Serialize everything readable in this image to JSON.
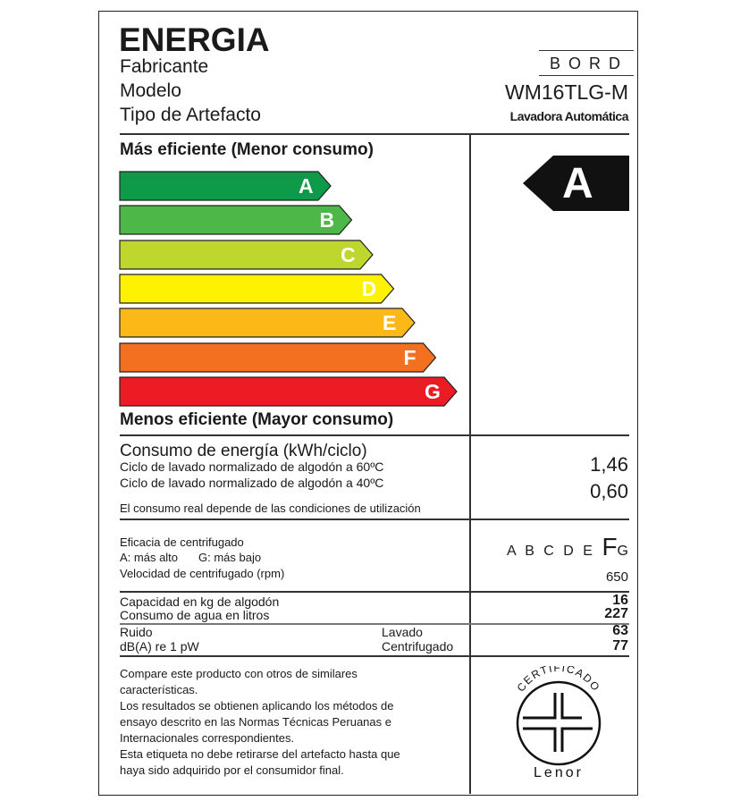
{
  "header": {
    "title": "ENERGIA",
    "labels": [
      "Fabricante",
      "Modelo",
      "Tipo de Artefacto"
    ],
    "brand": "BORD",
    "model": "WM16TLG-M",
    "appliance_type": "Lavadora Automática"
  },
  "scale": {
    "top_label": "Más eficiente (Menor consumo)",
    "bottom_label": "Menos eficiente (Mayor consumo)",
    "classes": [
      {
        "letter": "A",
        "color": "#0f9a4a"
      },
      {
        "letter": "B",
        "color": "#4db748"
      },
      {
        "letter": "C",
        "color": "#bfd62f"
      },
      {
        "letter": "D",
        "color": "#fff200"
      },
      {
        "letter": "E",
        "color": "#fbb817"
      },
      {
        "letter": "F",
        "color": "#f37021"
      },
      {
        "letter": "G",
        "color": "#ec1c24"
      }
    ],
    "rating": "A"
  },
  "consumption": {
    "title": "Consumo de energía (kWh/ciclo)",
    "line1": "Ciclo de lavado normalizado de algodón a 60ºC",
    "value1": "1,46",
    "line2": "Ciclo de lavado normalizado de algodón a 40ºC",
    "value2": "0,60",
    "note": "El consumo real depende de las condiciones de utilización"
  },
  "spin": {
    "title": "Eficacia de centrifugado",
    "legend_a": "A: más alto",
    "legend_g": "G: más bajo",
    "scale_before": "A B C D E",
    "scale_selected": "F",
    "scale_after": "G",
    "speed_label": "Velocidad de centrifugado (rpm)",
    "speed_value": "650"
  },
  "specs": {
    "capacity_label": "Capacidad en kg de algodón",
    "capacity_value": "16",
    "water_label": "Consumo de agua en litros",
    "water_value": "227",
    "noise_label": "Ruido",
    "noise_unit": "dB(A) re 1 pW",
    "wash_label": "Lavado",
    "wash_value": "63",
    "spin_label": "Centrifugado",
    "spin_value": "77"
  },
  "footer": {
    "lines": [
      "Compare este producto con otros de similares",
      "características.",
      "Los resultados se obtienen aplicando los métodos de",
      "ensayo descrito en las Normas Técnicas Peruanas e",
      "Internacionales correspondientes.",
      "Esta etiqueta no debe retirarse del artefacto hasta que",
      "haya sido adquirido por el consumidor final."
    ],
    "seal_text": "CERTIFICADO",
    "seal_brand": "Lenor"
  }
}
